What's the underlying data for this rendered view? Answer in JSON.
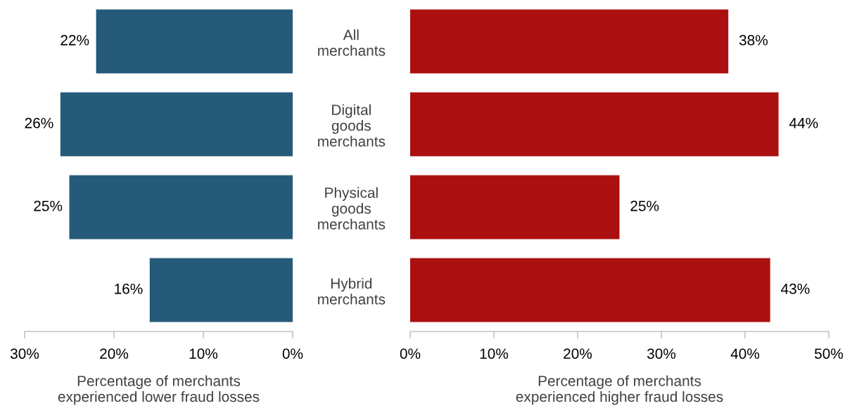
{
  "chart_data": [
    {
      "type": "bar",
      "orientation": "horizontal",
      "categories": [
        "All\nmerchants",
        "Digital\ngoods\nmerchants",
        "Physical\ngoods\nmerchants",
        "Hybrid\nmerchants"
      ],
      "values": [
        22,
        26,
        25,
        16
      ],
      "value_labels": [
        "22%",
        "26%",
        "25%",
        "16%"
      ],
      "color": "#255a78",
      "xlim": [
        30,
        0
      ],
      "xticks": [
        {
          "value": 30,
          "label": "30%"
        },
        {
          "value": 20,
          "label": "20%"
        },
        {
          "value": 10,
          "label": "10%"
        },
        {
          "value": 0,
          "label": "0%"
        }
      ],
      "xlabel": "Percentage of merchants\nexperienced lower fraud losses"
    },
    {
      "type": "bar",
      "orientation": "horizontal",
      "values": [
        38,
        44,
        25,
        43
      ],
      "value_labels": [
        "38%",
        "44%",
        "25%",
        "43%"
      ],
      "color": "#ab1010",
      "xlim": [
        0,
        50
      ],
      "xticks": [
        {
          "value": 0,
          "label": "0%"
        },
        {
          "value": 10,
          "label": "10%"
        },
        {
          "value": 20,
          "label": "20%"
        },
        {
          "value": 30,
          "label": "30%"
        },
        {
          "value": 40,
          "label": "40%"
        },
        {
          "value": 50,
          "label": "50%"
        }
      ],
      "xlabel": "Percentage of merchants\nexperienced higher fraud losses",
      "tick_labels": "x"
    }
  ]
}
